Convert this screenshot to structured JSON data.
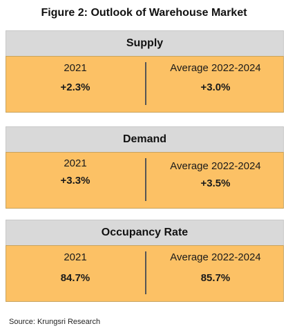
{
  "title": "Figure 2:  Outlook of Warehouse Market",
  "panels": [
    {
      "heading": "Supply",
      "left_label": "2021",
      "left_value": "+2.3%",
      "right_label": "Average 2022-2024",
      "right_value": "+3.0%"
    },
    {
      "heading": "Demand",
      "left_label": "2021",
      "left_value": "+3.3%",
      "right_label": "Average 2022-2024",
      "right_value": "+3.5%"
    },
    {
      "heading": "Occupancy Rate",
      "left_label": "2021",
      "left_value": "84.7%",
      "right_label": "Average 2022-2024",
      "right_value": "85.7%"
    }
  ],
  "source": "Source: Krungsri Research",
  "colors": {
    "header_bg": "#d9d9d9",
    "body_bg": "#fcc165",
    "divider": "#555555"
  }
}
